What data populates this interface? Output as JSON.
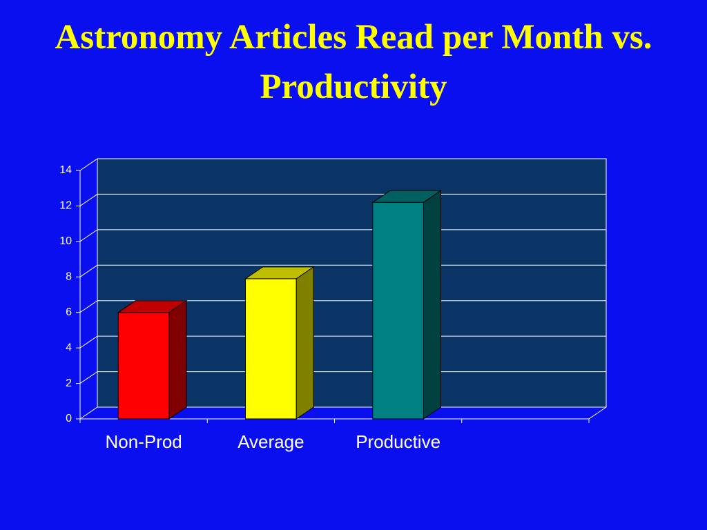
{
  "chart_data": {
    "type": "bar3d",
    "title": "Astronomy Articles Read per Month vs. Productivity",
    "categories": [
      "Non-Prod",
      "Average",
      "Productive",
      null
    ],
    "values": [
      6,
      7.9,
      12.2,
      null
    ],
    "colors": [
      "#ff0000",
      "#ffff00",
      "#008080",
      null
    ],
    "ylim": [
      0,
      14
    ],
    "yticks": [
      0,
      2,
      4,
      6,
      8,
      10,
      12,
      14
    ],
    "grid": true
  }
}
